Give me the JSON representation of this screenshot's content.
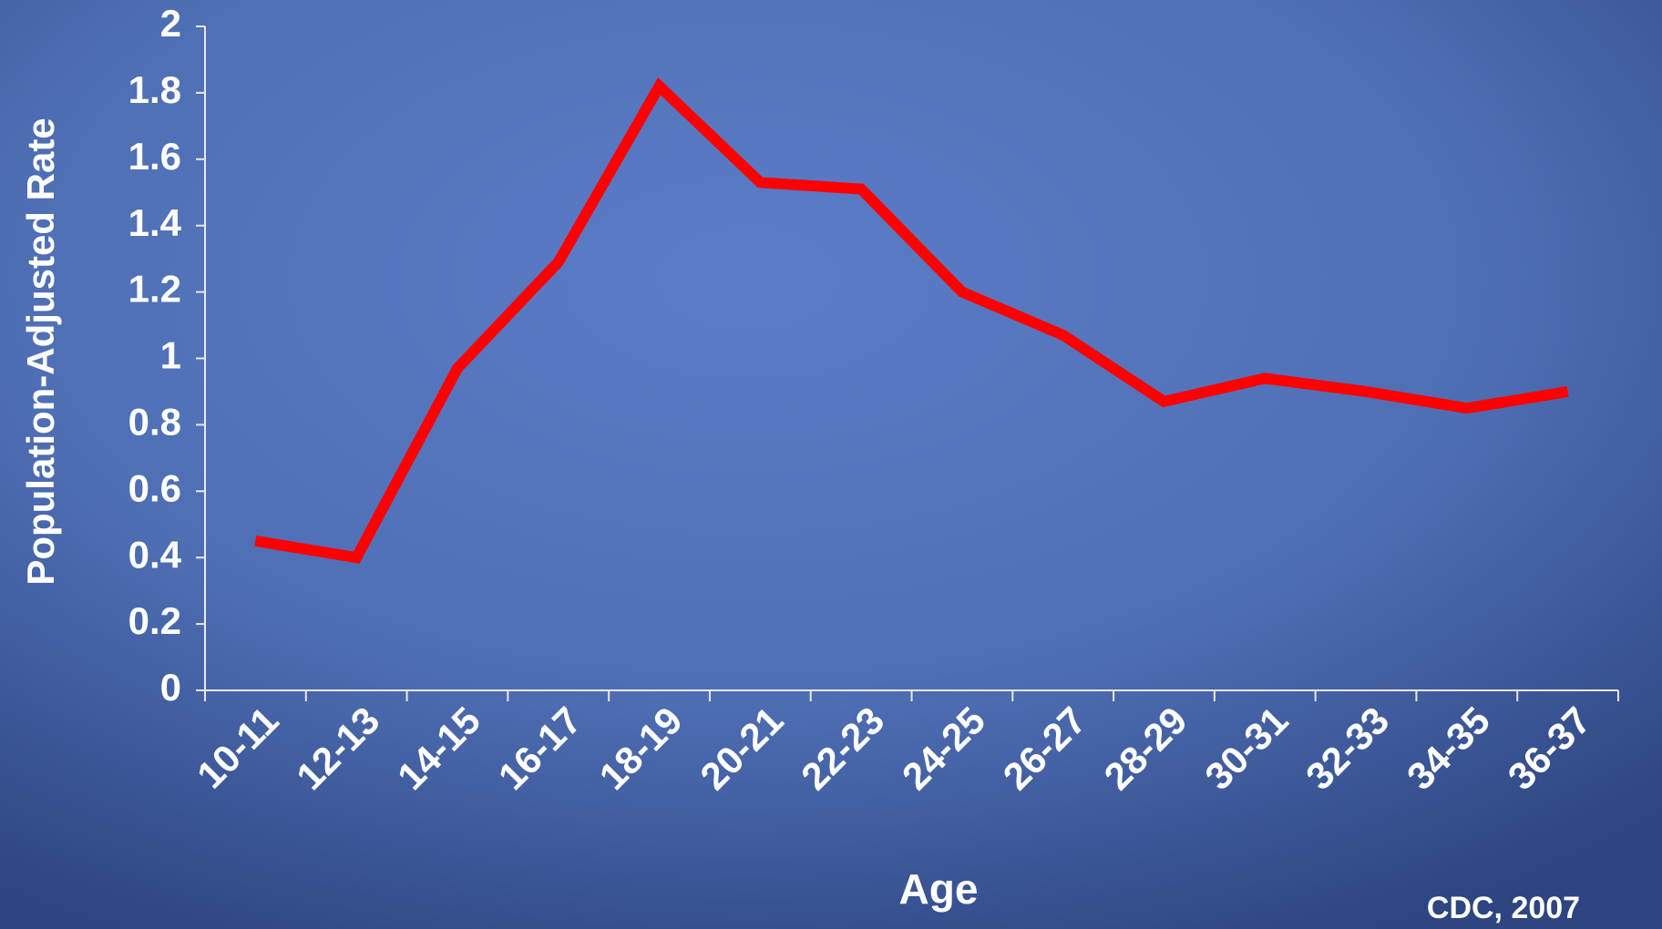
{
  "chart_data": {
    "type": "line",
    "x_label": "Age",
    "y_label": "Population-Adjusted Rate",
    "source": "CDC, 2007",
    "categories": [
      "10-11",
      "12-13",
      "14-15",
      "16-17",
      "18-19",
      "20-21",
      "22-23",
      "24-25",
      "26-27",
      "28-29",
      "30-31",
      "32-33",
      "34-35",
      "36-37"
    ],
    "series": [
      {
        "color": "#ff0000",
        "values": [
          0.45,
          0.4,
          0.97,
          1.29,
          1.82,
          1.53,
          1.51,
          1.2,
          1.07,
          0.87,
          0.94,
          0.9,
          0.85,
          0.9
        ]
      }
    ],
    "ylim": [
      0,
      2
    ],
    "yticks": [
      0,
      0.2,
      0.4,
      0.6,
      0.8,
      1,
      1.2,
      1.4,
      1.6,
      1.8,
      2
    ]
  }
}
